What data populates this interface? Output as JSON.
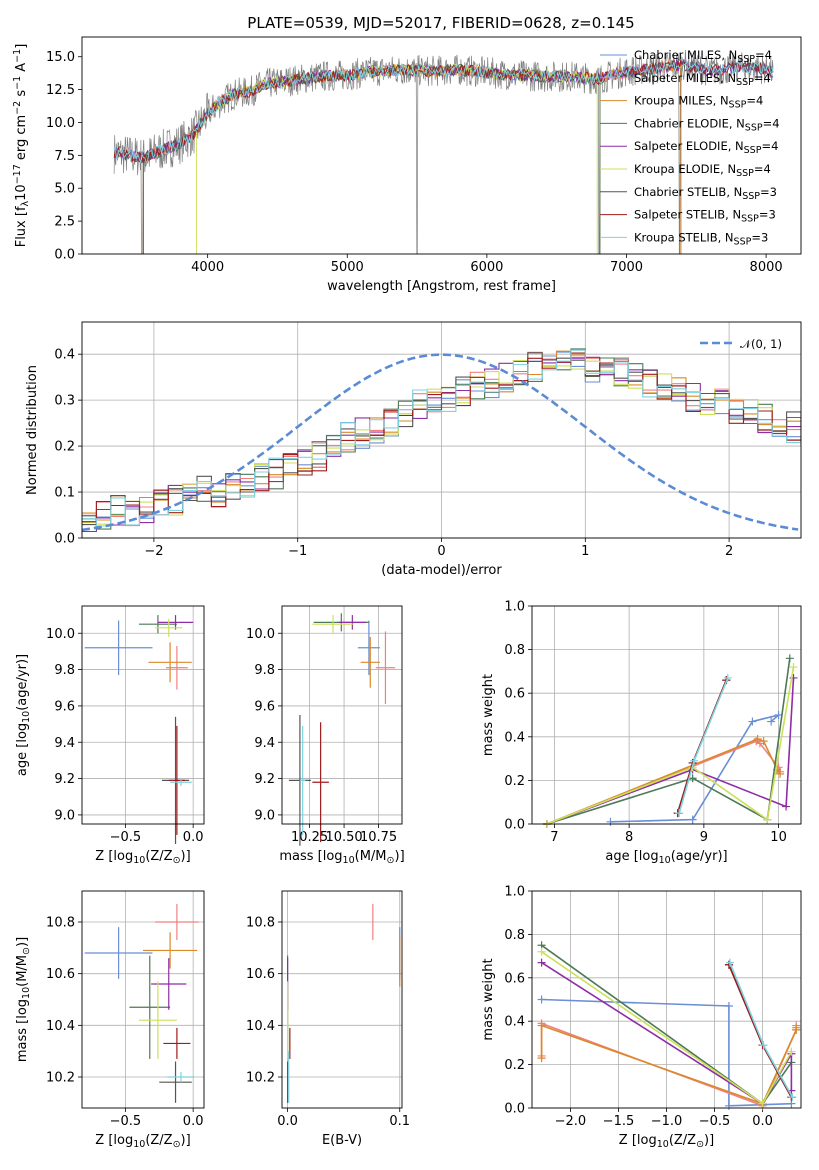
{
  "title": "PLATE=0539, MJD=52017, FIBERID=0628, z=0.145",
  "colors": {
    "Chabrier MILES": "#6a8fd6",
    "Salpeter MILES": "#f08080",
    "Kroupa MILES": "#d98a2a",
    "Chabrier ELODIE": "#4c7a55",
    "Salpeter ELODIE": "#8e2da6",
    "Kroupa ELODIE": "#cde05a",
    "Chabrier STELIB": "#555555",
    "Salpeter STELIB": "#a11c1c",
    "Kroupa STELIB": "#7fd2e0"
  },
  "chart_data": [
    {
      "type": "line",
      "xlabel": "wavelength [Angstrom, rest frame]",
      "ylabel": "Flux [f$_\\lambda$10$^{-17}$ erg cm$^{-2}$ s$^{-1}$ A$^{-1}$]",
      "xlim": [
        3100,
        8250
      ],
      "ylim": [
        0,
        16.5
      ],
      "xticks": [
        "4000",
        "5000",
        "6000",
        "7000",
        "8000"
      ],
      "yticks": [
        "0.0",
        "2.5",
        "5.0",
        "7.5",
        "10.0",
        "12.5",
        "15.0"
      ],
      "legend": [
        "Chabrier MILES, N$_{SSP}$=4",
        "Salpeter MILES, N$_{SSP}$=4",
        "Kroupa MILES, N$_{SSP}$=4",
        "Chabrier ELODIE, N$_{SSP}$=4",
        "Salpeter ELODIE, N$_{SSP}$=4",
        "Kroupa ELODIE, N$_{SSP}$=4",
        "Chabrier STELIB, N$_{SSP}$=3",
        "Salpeter STELIB, N$_{SSP}$=3",
        "Kroupa STELIB, N$_{SSP}$=3"
      ],
      "legend_position": "upper-right",
      "spectrum_outline": {
        "x": [
          3330,
          3500,
          3550,
          3600,
          3700,
          3800,
          3900,
          4000,
          4100,
          4200,
          4300,
          4400,
          4600,
          4800,
          5000,
          5200,
          5400,
          5600,
          5800,
          6000,
          6200,
          6400,
          6600,
          6800,
          7000,
          7200,
          7400,
          7600,
          7800,
          8000,
          8050
        ],
        "y": [
          7.7,
          7.4,
          7.3,
          7.6,
          8.0,
          8.4,
          9.1,
          10.7,
          11.6,
          12.2,
          12.3,
          12.9,
          13.2,
          13.5,
          13.6,
          13.9,
          14.0,
          13.9,
          14.0,
          13.8,
          13.6,
          13.5,
          13.5,
          13.3,
          13.9,
          14.1,
          14.4,
          13.9,
          14.2,
          14.1,
          13.8
        ]
      }
    },
    {
      "type": "bar",
      "xlabel": "(data-model)/error",
      "ylabel": "Normed distribution",
      "xlim": [
        -2.5,
        2.5
      ],
      "ylim": [
        0,
        0.47
      ],
      "xticks": [
        "−2",
        "−1",
        "0",
        "1",
        "2"
      ],
      "yticks": [
        "0.0",
        "0.1",
        "0.2",
        "0.3",
        "0.4"
      ],
      "grid": true,
      "legend": [
        "$\\mathcal{N}(0,1)$"
      ],
      "legend_position": "upper-right",
      "bin_width": 0.1,
      "bin_start": -2.5,
      "histogram_envelope": [
        0.04,
        0.05,
        0.06,
        0.06,
        0.06,
        0.07,
        0.08,
        0.09,
        0.1,
        0.1,
        0.11,
        0.12,
        0.13,
        0.14,
        0.15,
        0.16,
        0.18,
        0.2,
        0.22,
        0.23,
        0.24,
        0.25,
        0.27,
        0.29,
        0.3,
        0.31,
        0.32,
        0.33,
        0.34,
        0.35,
        0.36,
        0.37,
        0.37,
        0.38,
        0.38,
        0.37,
        0.37,
        0.36,
        0.35,
        0.34,
        0.33,
        0.32,
        0.31,
        0.3,
        0.29,
        0.28,
        0.27,
        0.26,
        0.25,
        0.24,
        0.23,
        0.22,
        0.2,
        0.18,
        0.16,
        0.15,
        0.14,
        0.13,
        0.12,
        0.11,
        0.1,
        0.09,
        0.08,
        0.08,
        0.07,
        0.06,
        0.06,
        0.05,
        0.05,
        0.04,
        0.04
      ],
      "normal_curve": {
        "mean": 0,
        "sigma": 1
      }
    },
    {
      "type": "scatter",
      "xlabel": "Z [log$_{10}$(Z/Z$_\\odot$)]",
      "ylabel": "age  [log$_{10}$(age/yr)]",
      "xlim": [
        -0.82,
        0.08
      ],
      "ylim": [
        8.95,
        10.15
      ],
      "xticks": [
        "−0.5",
        "0.0"
      ],
      "yticks": [
        "9.0",
        "9.2",
        "9.4",
        "9.6",
        "9.8",
        "10.0"
      ],
      "points": [
        {
          "name": "Chabrier MILES",
          "x": -0.55,
          "y": 9.92,
          "xerr": 0.25,
          "yerr": 0.15
        },
        {
          "name": "Salpeter MILES",
          "x": -0.12,
          "y": 9.81,
          "xerr": 0.08,
          "yerr": 0.12
        },
        {
          "name": "Kroupa MILES",
          "x": -0.17,
          "y": 9.84,
          "xerr": 0.16,
          "yerr": 0.11
        },
        {
          "name": "Chabrier ELODIE",
          "x": -0.26,
          "y": 10.05,
          "xerr": 0.14,
          "yerr": 0.05
        },
        {
          "name": "Salpeter ELODIE",
          "x": -0.13,
          "y": 10.06,
          "xerr": 0.13,
          "yerr": 0.04
        },
        {
          "name": "Kroupa ELODIE",
          "x": -0.18,
          "y": 10.03,
          "xerr": 0.1,
          "yerr": 0.05
        },
        {
          "name": "Chabrier STELIB",
          "x": -0.13,
          "y": 9.19,
          "xerr": 0.1,
          "yerr": 0.35
        },
        {
          "name": "Salpeter STELIB",
          "x": -0.12,
          "y": 9.19,
          "xerr": 0.06,
          "yerr": 0.3
        },
        {
          "name": "Kroupa STELIB",
          "x": -0.09,
          "y": 9.18,
          "xerr": 0.08,
          "yerr": 0.02
        }
      ]
    },
    {
      "type": "scatter",
      "xlabel": "mass [log$_{10}$(M/M$_\\odot$)]",
      "ylabel": "",
      "xlim": [
        10.05,
        10.92
      ],
      "ylim": [
        8.95,
        10.15
      ],
      "xticks": [
        "10.25",
        "10.50",
        "10.75"
      ],
      "yticks": [
        "9.0",
        "9.2",
        "9.4",
        "9.6",
        "9.8",
        "10.0"
      ],
      "points": [
        {
          "name": "Chabrier MILES",
          "x": 10.68,
          "y": 9.92,
          "xerr": 0.08,
          "yerr": 0.15
        },
        {
          "name": "Salpeter MILES",
          "x": 10.8,
          "y": 9.81,
          "xerr": 0.07,
          "yerr": 0.2
        },
        {
          "name": "Kroupa MILES",
          "x": 10.69,
          "y": 9.84,
          "xerr": 0.07,
          "yerr": 0.14
        },
        {
          "name": "Chabrier ELODIE",
          "x": 10.48,
          "y": 10.06,
          "xerr": 0.2,
          "yerr": 0.05
        },
        {
          "name": "Salpeter ELODIE",
          "x": 10.56,
          "y": 10.06,
          "xerr": 0.1,
          "yerr": 0.04
        },
        {
          "name": "Kroupa ELODIE",
          "x": 10.42,
          "y": 10.05,
          "xerr": 0.15,
          "yerr": 0.05
        },
        {
          "name": "Chabrier STELIB",
          "x": 10.18,
          "y": 9.19,
          "xerr": 0.08,
          "yerr": 0.36
        },
        {
          "name": "Salpeter STELIB",
          "x": 10.33,
          "y": 9.18,
          "xerr": 0.06,
          "yerr": 0.33
        },
        {
          "name": "Kroupa STELIB",
          "x": 10.2,
          "y": 9.19,
          "xerr": 0.02,
          "yerr": 0.3
        }
      ]
    },
    {
      "type": "line",
      "xlabel": "age  [log$_{10}$(age/yr)]",
      "ylabel": "mass weight",
      "xlim": [
        6.7,
        10.3
      ],
      "ylim": [
        0,
        1.0
      ],
      "xticks": [
        "7",
        "8",
        "9",
        "10"
      ],
      "yticks": [
        "0.0",
        "0.2",
        "0.4",
        "0.6",
        "0.8",
        "1.0"
      ],
      "series": [
        {
          "name": "Chabrier MILES",
          "x": [
            7.75,
            8.85,
            9.65,
            10.0,
            9.9
          ],
          "y": [
            0.01,
            0.02,
            0.47,
            0.5,
            0.47
          ]
        },
        {
          "name": "Salpeter MILES",
          "x": [
            6.9,
            9.7,
            9.75,
            10.0,
            10.02
          ],
          "y": [
            0.0,
            0.38,
            0.37,
            0.26,
            0.24
          ]
        },
        {
          "name": "Kroupa MILES",
          "x": [
            6.9,
            9.72,
            9.8,
            9.98,
            10.02
          ],
          "y": [
            0.0,
            0.39,
            0.38,
            0.25,
            0.23
          ]
        },
        {
          "name": "Chabrier ELODIE",
          "x": [
            6.9,
            8.85,
            9.85,
            10.15
          ],
          "y": [
            0.0,
            0.21,
            0.02,
            0.76
          ]
        },
        {
          "name": "Salpeter ELODIE",
          "x": [
            6.9,
            8.85,
            10.1,
            10.2
          ],
          "y": [
            0.0,
            0.25,
            0.08,
            0.67
          ]
        },
        {
          "name": "Kroupa ELODIE",
          "x": [
            6.9,
            8.85,
            9.85,
            10.2
          ],
          "y": [
            0.0,
            0.26,
            0.02,
            0.72
          ]
        },
        {
          "name": "Chabrier STELIB",
          "x": [
            8.65,
            8.85,
            9.3
          ],
          "y": [
            0.05,
            0.28,
            0.66
          ]
        },
        {
          "name": "Salpeter STELIB",
          "x": [
            8.65,
            8.85,
            9.3
          ],
          "y": [
            0.05,
            0.28,
            0.66
          ]
        },
        {
          "name": "Kroupa STELIB",
          "x": [
            8.67,
            8.87,
            9.32
          ],
          "y": [
            0.05,
            0.29,
            0.67
          ]
        }
      ]
    },
    {
      "type": "scatter",
      "xlabel": "Z [log$_{10}$(Z/Z$_\\odot$)]",
      "ylabel": "mass [log$_{10}$(M/M$_\\odot$)]",
      "xlim": [
        -0.82,
        0.08
      ],
      "ylim": [
        10.08,
        10.92
      ],
      "xticks": [
        "−0.5",
        "0.0"
      ],
      "yticks": [
        "10.2",
        "10.4",
        "10.6",
        "10.8"
      ],
      "points": [
        {
          "name": "Chabrier MILES",
          "x": -0.55,
          "y": 10.68,
          "xerr": 0.25,
          "yerr": 0.1
        },
        {
          "name": "Salpeter MILES",
          "x": -0.12,
          "y": 10.8,
          "xerr": 0.16,
          "yerr": 0.07
        },
        {
          "name": "Kroupa MILES",
          "x": -0.17,
          "y": 10.69,
          "xerr": 0.2,
          "yerr": 0.07
        },
        {
          "name": "Chabrier ELODIE",
          "x": -0.32,
          "y": 10.47,
          "xerr": 0.15,
          "yerr": 0.2
        },
        {
          "name": "Salpeter ELODIE",
          "x": -0.18,
          "y": 10.56,
          "xerr": 0.13,
          "yerr": 0.1
        },
        {
          "name": "Kroupa ELODIE",
          "x": -0.26,
          "y": 10.42,
          "xerr": 0.14,
          "yerr": 0.15
        },
        {
          "name": "Chabrier STELIB",
          "x": -0.13,
          "y": 10.18,
          "xerr": 0.12,
          "yerr": 0.08
        },
        {
          "name": "Salpeter STELIB",
          "x": -0.12,
          "y": 10.33,
          "xerr": 0.1,
          "yerr": 0.06
        },
        {
          "name": "Kroupa STELIB",
          "x": -0.09,
          "y": 10.2,
          "xerr": 0.1,
          "yerr": 0.02
        }
      ]
    },
    {
      "type": "scatter",
      "xlabel": "E(B-V)",
      "ylabel": "",
      "xlim": [
        -0.005,
        0.102
      ],
      "ylim": [
        10.08,
        10.92
      ],
      "xticks": [
        "0.0",
        "0.1"
      ],
      "yticks": [
        "10.2",
        "10.4",
        "10.6",
        "10.8"
      ],
      "points": [
        {
          "name": "Chabrier MILES",
          "x": 0.1,
          "y": 10.68,
          "xerr": 0.0,
          "yerr": 0.1
        },
        {
          "name": "Salpeter MILES",
          "x": 0.076,
          "y": 10.8,
          "xerr": 0.0,
          "yerr": 0.07
        },
        {
          "name": "Kroupa MILES",
          "x": 0.1,
          "y": 10.65,
          "xerr": 0.0,
          "yerr": 0.1
        },
        {
          "name": "Chabrier ELODIE",
          "x": 0.0,
          "y": 10.47,
          "xerr": 0.0,
          "yerr": 0.2
        },
        {
          "name": "Salpeter ELODIE",
          "x": 0.0,
          "y": 10.56,
          "xerr": 0.0,
          "yerr": 0.1
        },
        {
          "name": "Kroupa ELODIE",
          "x": 0.0,
          "y": 10.42,
          "xerr": 0.0,
          "yerr": 0.15
        },
        {
          "name": "Chabrier STELIB",
          "x": 0.0,
          "y": 10.18,
          "xerr": 0.0,
          "yerr": 0.08
        },
        {
          "name": "Salpeter STELIB",
          "x": 0.002,
          "y": 10.33,
          "xerr": 0.0,
          "yerr": 0.06
        },
        {
          "name": "Kroupa STELIB",
          "x": 0.001,
          "y": 10.2,
          "xerr": 0.0,
          "yerr": 0.1
        }
      ]
    },
    {
      "type": "line",
      "xlabel": "Z [log$_{10}$(Z/Z$_\\odot$)]",
      "ylabel": "mass weight",
      "xlim": [
        -2.4,
        0.4
      ],
      "ylim": [
        0,
        1.0
      ],
      "xticks": [
        "−2.0",
        "−1.5",
        "−1.0",
        "−0.5",
        "0.0"
      ],
      "yticks": [
        "0.0",
        "0.2",
        "0.4",
        "0.6",
        "0.8",
        "1.0"
      ],
      "series": [
        {
          "name": "Chabrier MILES",
          "x": [
            -2.3,
            -0.35,
            -0.35,
            0.3
          ],
          "y": [
            0.5,
            0.47,
            0.01,
            0.02
          ]
        },
        {
          "name": "Salpeter MILES",
          "x": [
            -2.3,
            -2.3,
            0.0,
            0.35,
            0.35
          ],
          "y": [
            0.24,
            0.39,
            0.01,
            0.36,
            0.38
          ]
        },
        {
          "name": "Kroupa MILES",
          "x": [
            -2.3,
            -2.3,
            0.0,
            0.35,
            0.35
          ],
          "y": [
            0.23,
            0.38,
            0.02,
            0.36,
            0.37
          ]
        },
        {
          "name": "Chabrier ELODIE",
          "x": [
            -2.3,
            0.0,
            0.3
          ],
          "y": [
            0.75,
            0.02,
            0.21
          ]
        },
        {
          "name": "Salpeter ELODIE",
          "x": [
            -2.3,
            0.0,
            0.3,
            0.3
          ],
          "y": [
            0.67,
            0.02,
            0.25,
            0.08
          ]
        },
        {
          "name": "Kroupa ELODIE",
          "x": [
            -2.3,
            0.0,
            0.3
          ],
          "y": [
            0.72,
            0.02,
            0.26
          ]
        },
        {
          "name": "Chabrier STELIB",
          "x": [
            -0.35,
            0.0,
            0.3
          ],
          "y": [
            0.66,
            0.29,
            0.05
          ]
        },
        {
          "name": "Salpeter STELIB",
          "x": [
            -0.35,
            0.0,
            0.3
          ],
          "y": [
            0.66,
            0.29,
            0.05
          ]
        },
        {
          "name": "Kroupa STELIB",
          "x": [
            -0.34,
            0.01,
            0.31
          ],
          "y": [
            0.67,
            0.29,
            0.05
          ]
        }
      ]
    }
  ]
}
